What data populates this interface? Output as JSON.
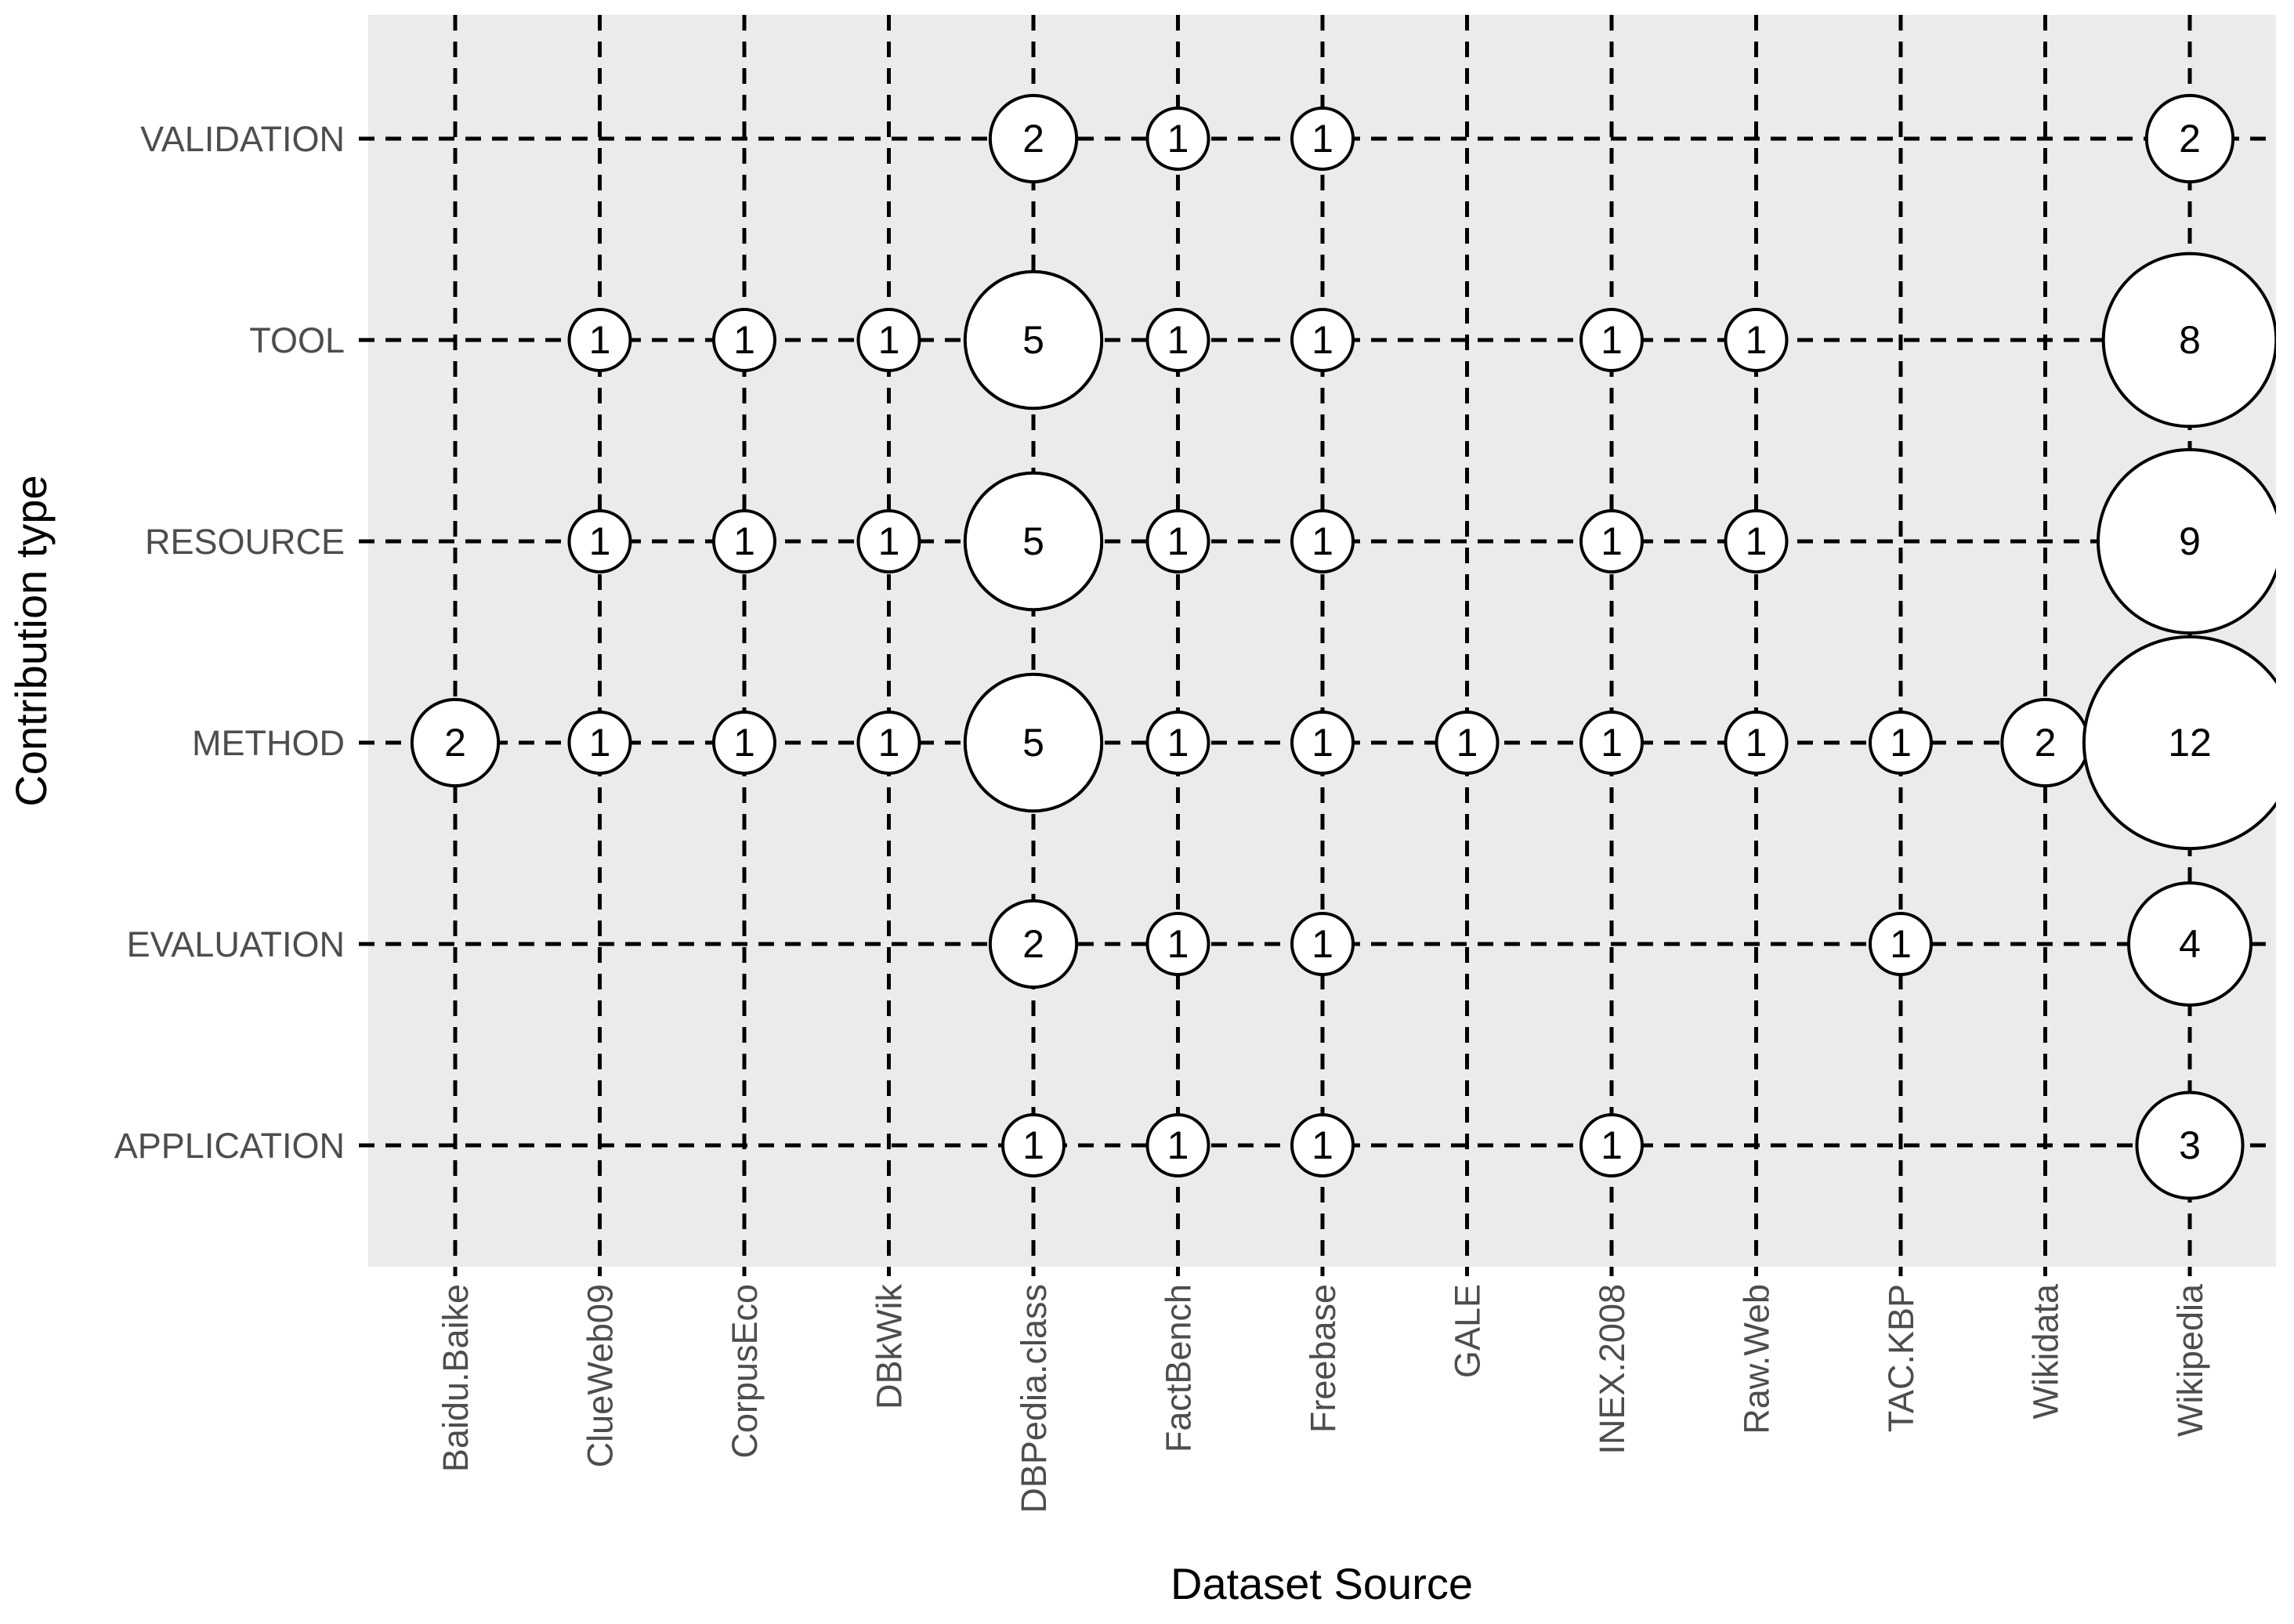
{
  "chart_data": {
    "type": "bubble",
    "x_label": "Dataset Source",
    "y_label": "Contribution type",
    "x_categories": [
      "Baidu.Baike",
      "ClueWeb09",
      "CorpusEco",
      "DBkWik",
      "DBPedia.class",
      "FactBench",
      "Freebase",
      "GALE",
      "INEX.2008",
      "Raw.Web",
      "TAC.KBP",
      "Wikidata",
      "Wikipedia"
    ],
    "y_categories": [
      "APPLICATION",
      "EVALUATION",
      "METHOD",
      "RESOURCE",
      "TOOL",
      "VALIDATION"
    ],
    "points": [
      {
        "x": "DBPedia.class",
        "y": "VALIDATION",
        "value": 2
      },
      {
        "x": "FactBench",
        "y": "VALIDATION",
        "value": 1
      },
      {
        "x": "Freebase",
        "y": "VALIDATION",
        "value": 1
      },
      {
        "x": "Wikipedia",
        "y": "VALIDATION",
        "value": 2
      },
      {
        "x": "ClueWeb09",
        "y": "TOOL",
        "value": 1
      },
      {
        "x": "CorpusEco",
        "y": "TOOL",
        "value": 1
      },
      {
        "x": "DBkWik",
        "y": "TOOL",
        "value": 1
      },
      {
        "x": "DBPedia.class",
        "y": "TOOL",
        "value": 5
      },
      {
        "x": "FactBench",
        "y": "TOOL",
        "value": 1
      },
      {
        "x": "Freebase",
        "y": "TOOL",
        "value": 1
      },
      {
        "x": "INEX.2008",
        "y": "TOOL",
        "value": 1
      },
      {
        "x": "Raw.Web",
        "y": "TOOL",
        "value": 1
      },
      {
        "x": "Wikipedia",
        "y": "TOOL",
        "value": 8
      },
      {
        "x": "ClueWeb09",
        "y": "RESOURCE",
        "value": 1
      },
      {
        "x": "CorpusEco",
        "y": "RESOURCE",
        "value": 1
      },
      {
        "x": "DBkWik",
        "y": "RESOURCE",
        "value": 1
      },
      {
        "x": "DBPedia.class",
        "y": "RESOURCE",
        "value": 5
      },
      {
        "x": "FactBench",
        "y": "RESOURCE",
        "value": 1
      },
      {
        "x": "Freebase",
        "y": "RESOURCE",
        "value": 1
      },
      {
        "x": "INEX.2008",
        "y": "RESOURCE",
        "value": 1
      },
      {
        "x": "Raw.Web",
        "y": "RESOURCE",
        "value": 1
      },
      {
        "x": "Wikipedia",
        "y": "RESOURCE",
        "value": 9
      },
      {
        "x": "Baidu.Baike",
        "y": "METHOD",
        "value": 2
      },
      {
        "x": "ClueWeb09",
        "y": "METHOD",
        "value": 1
      },
      {
        "x": "CorpusEco",
        "y": "METHOD",
        "value": 1
      },
      {
        "x": "DBkWik",
        "y": "METHOD",
        "value": 1
      },
      {
        "x": "DBPedia.class",
        "y": "METHOD",
        "value": 5
      },
      {
        "x": "FactBench",
        "y": "METHOD",
        "value": 1
      },
      {
        "x": "Freebase",
        "y": "METHOD",
        "value": 1
      },
      {
        "x": "GALE",
        "y": "METHOD",
        "value": 1
      },
      {
        "x": "INEX.2008",
        "y": "METHOD",
        "value": 1
      },
      {
        "x": "Raw.Web",
        "y": "METHOD",
        "value": 1
      },
      {
        "x": "TAC.KBP",
        "y": "METHOD",
        "value": 1
      },
      {
        "x": "Wikidata",
        "y": "METHOD",
        "value": 2
      },
      {
        "x": "Wikipedia",
        "y": "METHOD",
        "value": 12
      },
      {
        "x": "DBPedia.class",
        "y": "EVALUATION",
        "value": 2
      },
      {
        "x": "FactBench",
        "y": "EVALUATION",
        "value": 1
      },
      {
        "x": "Freebase",
        "y": "EVALUATION",
        "value": 1
      },
      {
        "x": "TAC.KBP",
        "y": "EVALUATION",
        "value": 1
      },
      {
        "x": "Wikipedia",
        "y": "EVALUATION",
        "value": 4
      },
      {
        "x": "DBPedia.class",
        "y": "APPLICATION",
        "value": 1
      },
      {
        "x": "FactBench",
        "y": "APPLICATION",
        "value": 1
      },
      {
        "x": "Freebase",
        "y": "APPLICATION",
        "value": 1
      },
      {
        "x": "INEX.2008",
        "y": "APPLICATION",
        "value": 1
      },
      {
        "x": "Wikipedia",
        "y": "APPLICATION",
        "value": 3
      }
    ],
    "panel_color": "#ebebeb",
    "bubble_color": "#ffffff"
  }
}
